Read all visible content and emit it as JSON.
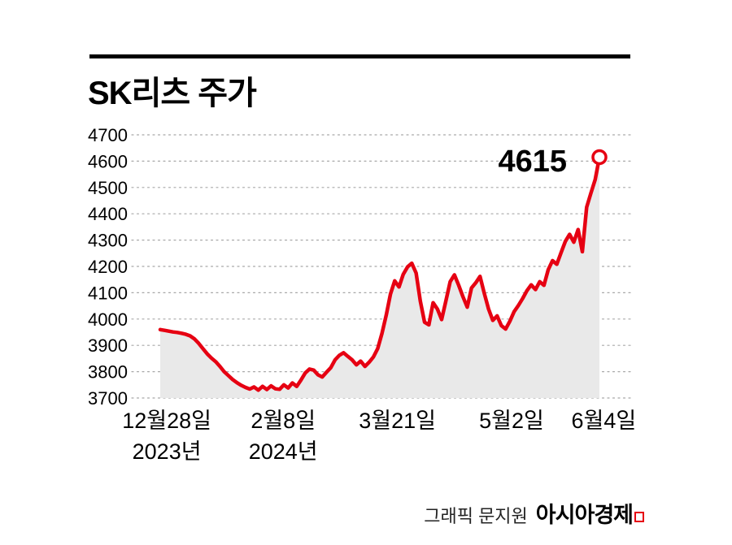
{
  "title": "SK리츠 주가",
  "annotation": {
    "last_value_label": "4615"
  },
  "credit": {
    "prefix": "그래픽 문지원",
    "brand": "아시아경제"
  },
  "icons": {
    "asiae_logo_mark": "red-corner-box"
  },
  "colors": {
    "line": "#e60012",
    "area_fill": "#e9e9e9",
    "grid": "#a8a8a8",
    "text": "#000000"
  },
  "chart_data": {
    "type": "area",
    "title": "SK리츠 주가",
    "ylim": [
      3700,
      4700
    ],
    "yticks": [
      4700,
      4600,
      4500,
      4400,
      4300,
      4200,
      4100,
      4000,
      3900,
      3800,
      3700
    ],
    "grid": "dotted-horizontal",
    "legend": "none",
    "last_label": "4615",
    "x_labels": [
      {
        "label": "12월28일",
        "sub": "2023년",
        "pos": 0.015
      },
      {
        "label": "2월8일",
        "sub": "2024년",
        "pos": 0.28
      },
      {
        "label": "3월21일",
        "sub": "",
        "pos": 0.54
      },
      {
        "label": "5월2일",
        "sub": "",
        "pos": 0.8
      },
      {
        "label": "6월4일",
        "sub": "",
        "pos": 1.01
      }
    ],
    "values": [
      3960,
      3957,
      3954,
      3951,
      3949,
      3946,
      3942,
      3936,
      3925,
      3908,
      3888,
      3868,
      3852,
      3838,
      3820,
      3800,
      3785,
      3770,
      3758,
      3748,
      3740,
      3734,
      3742,
      3730,
      3744,
      3732,
      3746,
      3735,
      3733,
      3750,
      3738,
      3757,
      3744,
      3768,
      3795,
      3810,
      3806,
      3788,
      3780,
      3798,
      3815,
      3845,
      3862,
      3872,
      3858,
      3845,
      3826,
      3840,
      3820,
      3836,
      3856,
      3888,
      3945,
      4015,
      4095,
      4145,
      4122,
      4170,
      4198,
      4212,
      4175,
      4068,
      3988,
      3978,
      4062,
      4038,
      3998,
      4070,
      4142,
      4168,
      4128,
      4085,
      4045,
      4118,
      4138,
      4162,
      4098,
      4038,
      3995,
      4012,
      3975,
      3962,
      3992,
      4028,
      4052,
      4078,
      4108,
      4130,
      4112,
      4142,
      4128,
      4188,
      4222,
      4208,
      4252,
      4295,
      4322,
      4292,
      4340,
      4256,
      4425,
      4478,
      4530,
      4615
    ]
  }
}
